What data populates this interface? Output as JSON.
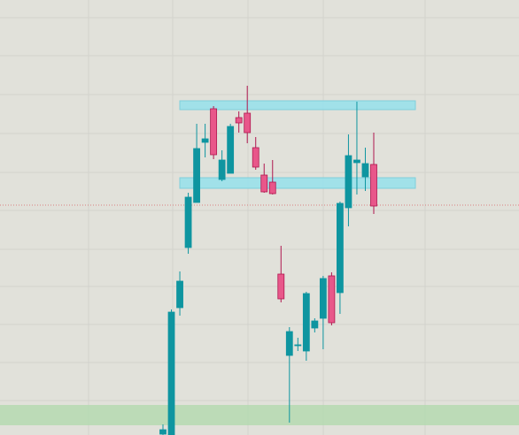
{
  "chart_data": {
    "type": "candlestick",
    "ylim": [
      0,
      492
    ],
    "up_color": "#0e95a0",
    "down_color": "#e8578a",
    "open": [
      1,
      0,
      144,
      212,
      263,
      331,
      369,
      289,
      296,
      359,
      364,
      325,
      294,
      286,
      182,
      90,
      101,
      95,
      121,
      132,
      180,
      161,
      257,
      308,
      292,
      306
    ],
    "high": [
      12,
      142,
      185,
      274,
      352,
      352,
      372,
      322,
      352,
      366,
      395,
      337,
      307,
      311,
      214,
      122,
      110,
      162,
      132,
      180,
      184,
      264,
      340,
      377,
      325,
      342
    ],
    "low": [
      0,
      0,
      135,
      205,
      263,
      314,
      312,
      287,
      296,
      342,
      330,
      300,
      274,
      272,
      150,
      14,
      95,
      84,
      116,
      97,
      124,
      137,
      236,
      272,
      276,
      250
    ],
    "close": [
      6,
      139,
      174,
      269,
      324,
      335,
      317,
      311,
      349,
      353,
      342,
      303,
      275,
      273,
      154,
      117,
      102,
      160,
      129,
      177,
      127,
      262,
      316,
      311,
      307,
      259
    ],
    "zones": [
      {
        "low": 368,
        "high": 378,
        "color": "#9de0ea"
      },
      {
        "low": 279,
        "high": 291,
        "color": "#9de0ea"
      },
      {
        "low": 11,
        "high": 34,
        "color": "#b5d9b0"
      }
    ],
    "hline": {
      "value": 260,
      "color": "#d98080"
    }
  }
}
